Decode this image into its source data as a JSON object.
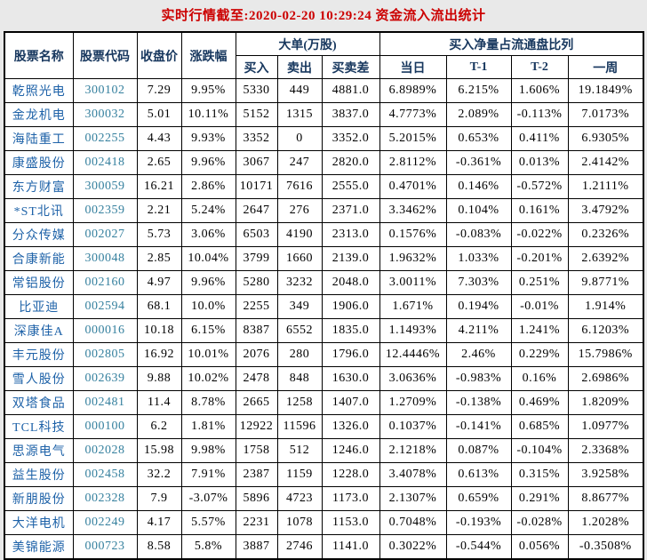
{
  "title": "实时行情截至:2020-02-20 10:29:24 资金流入流出统计",
  "colors": {
    "title_red": "#CC0000",
    "header_navy": "#17375E",
    "stock_name_blue": "#1E62A8",
    "stock_code_teal": "#35809E",
    "value_black": "#000000",
    "border_black": "#000000",
    "cell_bg": "#FFFFFF",
    "page_bg": "#E9E9E9"
  },
  "table": {
    "headers": {
      "name": "股票名称",
      "code": "股票代码",
      "close": "收盘价",
      "change": "涨跌幅",
      "big_orders_group": "大单(万股)",
      "buy": "买入",
      "sell": "卖出",
      "diff": "买卖差",
      "net_ratio_group": "买入净量占流通盘比列",
      "day": "当日",
      "t1": "T-1",
      "t2": "T-2",
      "week": "一周"
    },
    "rows": [
      [
        "乾照光电",
        "300102",
        "7.29",
        "9.95%",
        "5330",
        "449",
        "4881.0",
        "6.8989%",
        "6.215%",
        "1.606%",
        "19.1849%"
      ],
      [
        "金龙机电",
        "300032",
        "5.01",
        "10.11%",
        "5152",
        "1315",
        "3837.0",
        "4.7773%",
        "2.089%",
        "-0.113%",
        "7.0173%"
      ],
      [
        "海陆重工",
        "002255",
        "4.43",
        "9.93%",
        "3352",
        "0",
        "3352.0",
        "5.2015%",
        "0.653%",
        "0.411%",
        "6.9305%"
      ],
      [
        "康盛股份",
        "002418",
        "2.65",
        "9.96%",
        "3067",
        "247",
        "2820.0",
        "2.8112%",
        "-0.361%",
        "0.013%",
        "2.4142%"
      ],
      [
        "东方财富",
        "300059",
        "16.21",
        "2.86%",
        "10171",
        "7616",
        "2555.0",
        "0.4701%",
        "0.146%",
        "-0.572%",
        "1.2111%"
      ],
      [
        "*ST北讯",
        "002359",
        "2.21",
        "5.24%",
        "2647",
        "276",
        "2371.0",
        "3.3462%",
        "0.104%",
        "0.161%",
        "3.4792%"
      ],
      [
        "分众传媒",
        "002027",
        "5.73",
        "3.06%",
        "6503",
        "4190",
        "2313.0",
        "0.1576%",
        "-0.083%",
        "-0.022%",
        "0.2326%"
      ],
      [
        "合康新能",
        "300048",
        "2.85",
        "10.04%",
        "3799",
        "1660",
        "2139.0",
        "1.9632%",
        "1.033%",
        "-0.201%",
        "2.6392%"
      ],
      [
        "常铝股份",
        "002160",
        "4.97",
        "9.96%",
        "5280",
        "3232",
        "2048.0",
        "3.0011%",
        "7.303%",
        "0.251%",
        "9.8771%"
      ],
      [
        "比亚迪",
        "002594",
        "68.1",
        "10.0%",
        "2255",
        "349",
        "1906.0",
        "1.671%",
        "0.194%",
        "-0.01%",
        "1.914%"
      ],
      [
        "深康佳A",
        "000016",
        "10.18",
        "6.15%",
        "8387",
        "6552",
        "1835.0",
        "1.1493%",
        "4.211%",
        "1.241%",
        "6.1203%"
      ],
      [
        "丰元股份",
        "002805",
        "16.92",
        "10.01%",
        "2076",
        "280",
        "1796.0",
        "12.4446%",
        "2.46%",
        "0.229%",
        "15.7986%"
      ],
      [
        "雪人股份",
        "002639",
        "9.88",
        "10.02%",
        "2478",
        "848",
        "1630.0",
        "3.0636%",
        "-0.983%",
        "0.16%",
        "2.6986%"
      ],
      [
        "双塔食品",
        "002481",
        "11.4",
        "8.78%",
        "2665",
        "1258",
        "1407.0",
        "1.2709%",
        "-0.138%",
        "0.469%",
        "1.8209%"
      ],
      [
        "TCL科技",
        "000100",
        "6.2",
        "1.81%",
        "12922",
        "11596",
        "1326.0",
        "0.1037%",
        "-0.141%",
        "0.685%",
        "1.0977%"
      ],
      [
        "思源电气",
        "002028",
        "15.98",
        "9.98%",
        "1758",
        "512",
        "1246.0",
        "2.1218%",
        "0.087%",
        "-0.104%",
        "2.3368%"
      ],
      [
        "益生股份",
        "002458",
        "32.2",
        "7.91%",
        "2387",
        "1159",
        "1228.0",
        "3.4078%",
        "0.613%",
        "0.315%",
        "3.9258%"
      ],
      [
        "新朋股份",
        "002328",
        "7.9",
        "-3.07%",
        "5896",
        "4723",
        "1173.0",
        "2.1307%",
        "0.659%",
        "0.291%",
        "8.8677%"
      ],
      [
        "大洋电机",
        "002249",
        "4.17",
        "5.57%",
        "2231",
        "1078",
        "1153.0",
        "0.7048%",
        "-0.193%",
        "-0.028%",
        "1.2028%"
      ],
      [
        "美锦能源",
        "000723",
        "8.58",
        "5.8%",
        "3887",
        "2746",
        "1141.0",
        "0.3022%",
        "-0.544%",
        "0.056%",
        "-0.3508%"
      ]
    ],
    "cell_names": [
      "stock-name-cell",
      "stock-code-cell",
      "close-price-cell",
      "change-percent-cell",
      "buy-volume-cell",
      "sell-volume-cell",
      "buy-sell-diff-cell",
      "day-ratio-cell",
      "t1-ratio-cell",
      "t2-ratio-cell",
      "week-ratio-cell"
    ]
  }
}
